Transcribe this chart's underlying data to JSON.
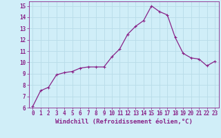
{
  "x": [
    0,
    1,
    2,
    3,
    4,
    5,
    6,
    7,
    8,
    9,
    10,
    11,
    12,
    13,
    14,
    15,
    16,
    17,
    18,
    19,
    20,
    21,
    22,
    23
  ],
  "y": [
    6.1,
    7.5,
    7.8,
    8.9,
    9.1,
    9.2,
    9.5,
    9.6,
    9.6,
    9.6,
    10.5,
    11.2,
    12.5,
    13.2,
    13.7,
    15.0,
    14.5,
    14.2,
    12.2,
    10.8,
    10.4,
    10.3,
    9.7,
    10.1
  ],
  "line_color": "#882288",
  "marker": "+",
  "marker_size": 3,
  "xlabel": "Windchill (Refroidissement éolien,°C)",
  "xlabel_fontsize": 6.5,
  "background_color": "#d0eef8",
  "grid_color": "#b8dce8",
  "tick_color": "#882288",
  "label_color": "#882288",
  "ylim": [
    6,
    15.4
  ],
  "yticks": [
    6,
    7,
    8,
    9,
    10,
    11,
    12,
    13,
    14,
    15
  ],
  "xticks": [
    0,
    1,
    2,
    3,
    4,
    5,
    6,
    7,
    8,
    9,
    10,
    11,
    12,
    13,
    14,
    15,
    16,
    17,
    18,
    19,
    20,
    21,
    22,
    23
  ],
  "tick_fontsize": 5.5,
  "line_width": 0.9
}
